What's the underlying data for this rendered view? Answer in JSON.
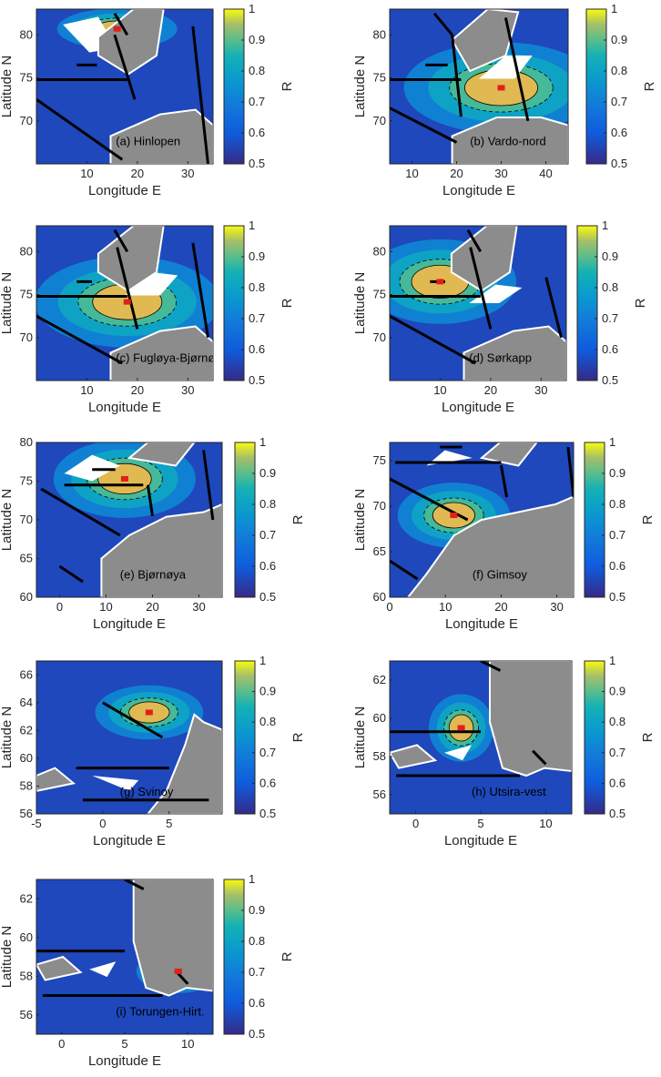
{
  "chart_data": [
    {
      "type": "heatmap",
      "panel_label": "(a) Hinlopen",
      "xlabel": "Longitude E",
      "ylabel": "Latitude N",
      "colorbar_label": "R",
      "xlim": [
        0,
        35
      ],
      "ylim": [
        65,
        83
      ],
      "xticks": [
        10,
        20,
        30
      ],
      "yticks": [
        70,
        75,
        80
      ],
      "clim": [
        0.5,
        1
      ],
      "cticks": [
        "0.5",
        "0.6",
        "0.7",
        "0.8",
        "0.9",
        "1"
      ],
      "high_zone": {
        "lon": [
          13,
          19
        ],
        "lat": [
          80.2,
          81.2
        ],
        "level": 0.97
      },
      "sections": [
        {
          "lon": [
            0,
            18
          ],
          "lat": [
            74.8,
            74.8
          ]
        },
        {
          "lon": [
            0,
            17
          ],
          "lat": [
            72.5,
            65.5
          ]
        },
        {
          "lon": [
            15.5,
            19.5
          ],
          "lat": [
            80,
            72.5
          ]
        },
        {
          "lon": [
            31,
            34
          ],
          "lat": [
            81,
            65
          ]
        },
        {
          "lon": [
            8,
            12
          ],
          "lat": [
            76.5,
            76.5
          ]
        },
        {
          "lon": [
            15.5,
            18
          ],
          "lat": [
            82.5,
            80
          ]
        }
      ]
    },
    {
      "type": "heatmap",
      "panel_label": "(b) Vardo-nord",
      "xlabel": "Longitude E",
      "ylabel": "Latitude N",
      "colorbar_label": "R",
      "xlim": [
        5,
        45
      ],
      "ylim": [
        65,
        83
      ],
      "xticks": [
        10,
        20,
        30,
        40
      ],
      "yticks": [
        70,
        75,
        80
      ],
      "clim": [
        0.5,
        1
      ],
      "cticks": [
        "0.5",
        "0.6",
        "0.7",
        "0.8",
        "0.9",
        "1"
      ],
      "high_zone": {
        "lon": [
          24,
          36
        ],
        "lat": [
          72.2,
          75.5
        ],
        "level": 0.97
      },
      "sections": [
        {
          "lon": [
            5,
            21
          ],
          "lat": [
            74.8,
            74.8
          ]
        },
        {
          "lon": [
            5,
            20
          ],
          "lat": [
            71.5,
            67.5
          ]
        },
        {
          "lon": [
            19,
            21
          ],
          "lat": [
            80,
            70.5
          ]
        },
        {
          "lon": [
            31,
            36
          ],
          "lat": [
            82,
            70
          ]
        },
        {
          "lon": [
            13,
            18
          ],
          "lat": [
            76.5,
            76.5
          ]
        },
        {
          "lon": [
            15,
            19
          ],
          "lat": [
            82.5,
            80
          ]
        }
      ]
    },
    {
      "type": "heatmap",
      "panel_label": "(c) Fugløya-Bjørnøya",
      "xlabel": "Longitude E",
      "ylabel": "Latitude N",
      "colorbar_label": "R",
      "xlim": [
        0,
        35
      ],
      "ylim": [
        65,
        83
      ],
      "xticks": [
        10,
        20,
        30
      ],
      "yticks": [
        70,
        75,
        80
      ],
      "clim": [
        0.5,
        1
      ],
      "cticks": [
        "0.5",
        "0.6",
        "0.7",
        "0.8",
        "0.9",
        "1"
      ],
      "high_zone": {
        "lon": [
          13,
          23
        ],
        "lat": [
          72.5,
          75.8
        ],
        "level": 0.97
      },
      "sections": [
        {
          "lon": [
            0,
            18
          ],
          "lat": [
            74.8,
            74.8
          ]
        },
        {
          "lon": [
            0,
            17
          ],
          "lat": [
            72.5,
            67
          ]
        },
        {
          "lon": [
            16,
            20
          ],
          "lat": [
            80.5,
            71
          ]
        },
        {
          "lon": [
            31,
            34
          ],
          "lat": [
            81,
            70
          ]
        },
        {
          "lon": [
            8,
            11
          ],
          "lat": [
            76.5,
            76.5
          ]
        },
        {
          "lon": [
            15.5,
            18
          ],
          "lat": [
            82.5,
            80
          ]
        }
      ]
    },
    {
      "type": "heatmap",
      "panel_label": "(d) Sørkapp",
      "xlabel": "Longitude E",
      "ylabel": "Latitude N",
      "colorbar_label": "R",
      "xlim": [
        0,
        35
      ],
      "ylim": [
        65,
        83
      ],
      "xticks": [
        10,
        20,
        30
      ],
      "yticks": [
        70,
        75,
        80
      ],
      "clim": [
        0.5,
        1
      ],
      "cticks": [
        "0.5",
        "0.6",
        "0.7",
        "0.8",
        "0.9",
        "1"
      ],
      "high_zone": {
        "lon": [
          6,
          14
        ],
        "lat": [
          75,
          78
        ],
        "level": 0.97
      },
      "sections": [
        {
          "lon": [
            0,
            18
          ],
          "lat": [
            74.8,
            74.8
          ]
        },
        {
          "lon": [
            0,
            17
          ],
          "lat": [
            72.5,
            67
          ]
        },
        {
          "lon": [
            16,
            20
          ],
          "lat": [
            80.5,
            71
          ]
        },
        {
          "lon": [
            31,
            34
          ],
          "lat": [
            77,
            70
          ]
        },
        {
          "lon": [
            8,
            11
          ],
          "lat": [
            76.5,
            76.5
          ]
        },
        {
          "lon": [
            15.5,
            18
          ],
          "lat": [
            82.5,
            80
          ]
        }
      ]
    },
    {
      "type": "heatmap",
      "panel_label": "(e) Bjørnøya",
      "xlabel": "Longitude E",
      "ylabel": "Latitude N",
      "colorbar_label": "R",
      "xlim": [
        -5,
        35
      ],
      "ylim": [
        60,
        80
      ],
      "xticks": [
        0,
        10,
        20,
        30
      ],
      "yticks": [
        60,
        65,
        70,
        75,
        80
      ],
      "clim": [
        0.5,
        1
      ],
      "cticks": [
        "0.5",
        "0.6",
        "0.7",
        "0.8",
        "0.9",
        "1"
      ],
      "high_zone": {
        "lon": [
          10,
          18
        ],
        "lat": [
          73.8,
          76.8
        ],
        "level": 0.97
      },
      "sections": [
        {
          "lon": [
            1,
            18
          ],
          "lat": [
            74.5,
            74.5
          ]
        },
        {
          "lon": [
            -4,
            13
          ],
          "lat": [
            74,
            68
          ]
        },
        {
          "lon": [
            19,
            20
          ],
          "lat": [
            74.5,
            70.5
          ]
        },
        {
          "lon": [
            31,
            33
          ],
          "lat": [
            79,
            70
          ]
        },
        {
          "lon": [
            7,
            12
          ],
          "lat": [
            76.5,
            76.5
          ]
        },
        {
          "lon": [
            0,
            5
          ],
          "lat": [
            64,
            62
          ]
        }
      ]
    },
    {
      "type": "heatmap",
      "panel_label": "(f) Gimsoy",
      "xlabel": "Longitude E",
      "ylabel": "Latitude N",
      "colorbar_label": "R",
      "xlim": [
        0,
        33
      ],
      "ylim": [
        60,
        77
      ],
      "xticks": [
        0,
        10,
        20,
        30
      ],
      "yticks": [
        60,
        65,
        70,
        75
      ],
      "clim": [
        0.5,
        1
      ],
      "cticks": [
        "0.5",
        "0.6",
        "0.7",
        "0.8",
        "0.9",
        "1"
      ],
      "high_zone": {
        "lon": [
          9,
          14
        ],
        "lat": [
          68,
          70
        ],
        "level": 0.97
      },
      "sections": [
        {
          "lon": [
            1,
            20
          ],
          "lat": [
            74.8,
            74.8
          ]
        },
        {
          "lon": [
            0,
            14
          ],
          "lat": [
            73,
            68.5
          ]
        },
        {
          "lon": [
            20,
            21
          ],
          "lat": [
            74.5,
            71
          ]
        },
        {
          "lon": [
            32,
            33
          ],
          "lat": [
            76.5,
            71
          ]
        },
        {
          "lon": [
            9,
            13
          ],
          "lat": [
            76.5,
            76.5
          ]
        },
        {
          "lon": [
            0,
            5
          ],
          "lat": [
            64,
            62
          ]
        }
      ]
    },
    {
      "type": "heatmap",
      "panel_label": "(g) Svinoy",
      "xlabel": "Longitude E",
      "ylabel": "Latitude N",
      "colorbar_label": "R",
      "xlim": [
        -5,
        9
      ],
      "ylim": [
        56,
        67
      ],
      "xticks": [
        -5,
        0,
        5
      ],
      "yticks": [
        56,
        58,
        60,
        62,
        64,
        66
      ],
      "clim": [
        0.5,
        1
      ],
      "cticks": [
        "0.5",
        "0.6",
        "0.7",
        "0.8",
        "0.9",
        "1"
      ],
      "high_zone": {
        "lon": [
          2.5,
          4.5
        ],
        "lat": [
          62.8,
          63.8
        ],
        "level": 0.97
      },
      "sections": [
        {
          "lon": [
            0,
            4.5
          ],
          "lat": [
            64,
            61.5
          ]
        },
        {
          "lon": [
            -2,
            5
          ],
          "lat": [
            59.3,
            59.3
          ]
        },
        {
          "lon": [
            -1.5,
            8
          ],
          "lat": [
            57,
            57
          ]
        }
      ]
    },
    {
      "type": "heatmap",
      "panel_label": "(h) Utsira-vest",
      "xlabel": "Longitude E",
      "ylabel": "Latitude N",
      "colorbar_label": "R",
      "xlim": [
        -2,
        12
      ],
      "ylim": [
        55,
        63
      ],
      "xticks": [
        0,
        5,
        10
      ],
      "yticks": [
        56,
        58,
        60,
        62
      ],
      "clim": [
        0.5,
        1
      ],
      "cticks": [
        "0.5",
        "0.6",
        "0.7",
        "0.8",
        "0.9",
        "1"
      ],
      "high_zone": {
        "lon": [
          3,
          4
        ],
        "lat": [
          59,
          60
        ],
        "level": 0.97
      },
      "sections": [
        {
          "lon": [
            -2,
            5
          ],
          "lat": [
            59.3,
            59.3
          ]
        },
        {
          "lon": [
            -1.5,
            8
          ],
          "lat": [
            57,
            57
          ]
        },
        {
          "lon": [
            9,
            10
          ],
          "lat": [
            58.3,
            57.6
          ]
        },
        {
          "lon": [
            5,
            6.5
          ],
          "lat": [
            63,
            62.5
          ]
        }
      ]
    },
    {
      "type": "heatmap",
      "panel_label": "(i) Torungen-Hirt.",
      "xlabel": "Longitude E",
      "ylabel": "Latitude N",
      "colorbar_label": "R",
      "xlim": [
        -2,
        12
      ],
      "ylim": [
        55,
        63
      ],
      "xticks": [
        0,
        5,
        10
      ],
      "yticks": [
        56,
        58,
        60,
        62
      ],
      "clim": [
        0.5,
        1
      ],
      "cticks": [
        "0.5",
        "0.6",
        "0.7",
        "0.8",
        "0.9",
        "1"
      ],
      "high_zone": {
        "lon": [
          8.5,
          10
        ],
        "lat": [
          58,
          58.5
        ],
        "level": 0.97
      },
      "sections": [
        {
          "lon": [
            -2,
            5
          ],
          "lat": [
            59.3,
            59.3
          ]
        },
        {
          "lon": [
            -1.5,
            8
          ],
          "lat": [
            57,
            57
          ]
        },
        {
          "lon": [
            9,
            10
          ],
          "lat": [
            58.3,
            57.6
          ]
        },
        {
          "lon": [
            5,
            6.5
          ],
          "lat": [
            63,
            62.5
          ]
        }
      ]
    }
  ]
}
